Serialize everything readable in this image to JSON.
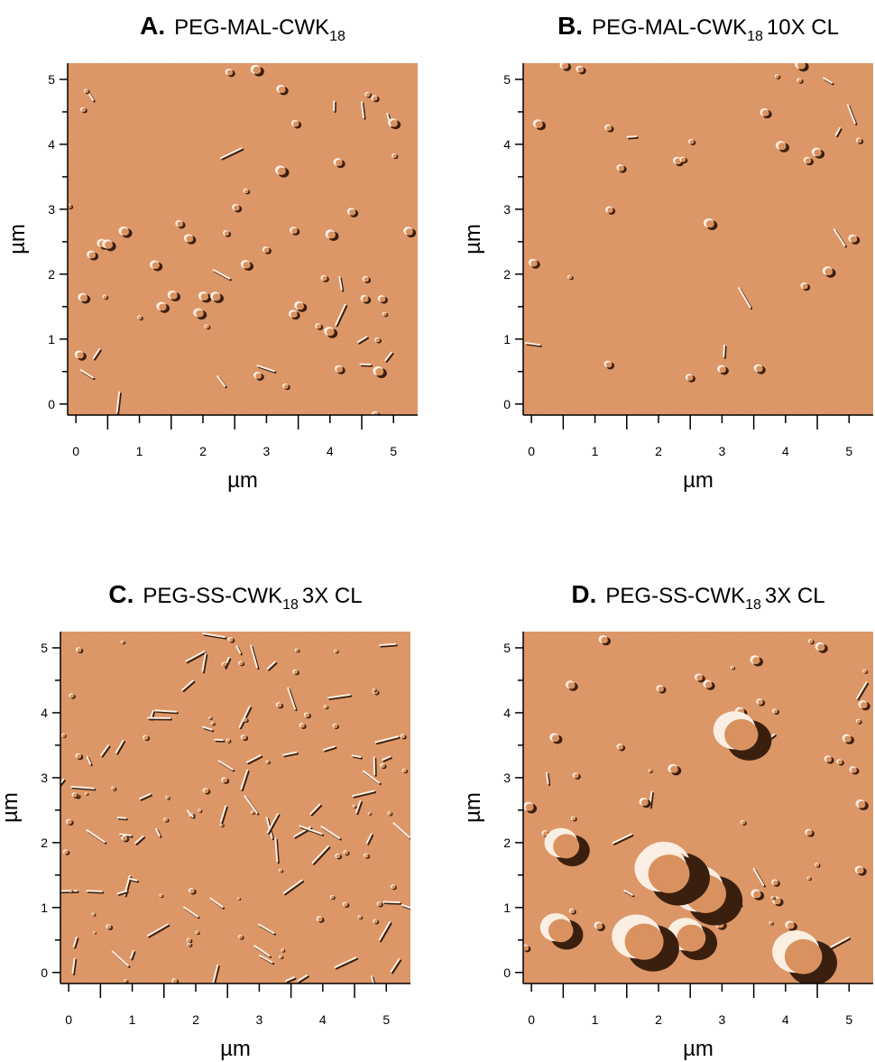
{
  "axes": {
    "x_label": "µm",
    "y_label": "µm",
    "xlim": [
      -0.13,
      5.38
    ],
    "ylim": [
      -0.17,
      5.25
    ],
    "xticks": [
      0,
      1,
      2,
      3,
      4,
      5
    ],
    "yticks": [
      0,
      1,
      2,
      3,
      4,
      5
    ],
    "xminor": [
      0.5,
      1.5,
      2.5,
      3.5,
      4.5
    ],
    "yminor": [
      0.5,
      1.5,
      2.5,
      3.5,
      4.5
    ]
  },
  "panels": [
    {
      "letter": "A.",
      "title": "PEG-MAL-CWK",
      "subscript": "18"
    },
    {
      "letter": "B.",
      "title": "PEG-MAL-CWK",
      "subscript": "18",
      "suffix": "10X CL"
    },
    {
      "letter": "C.",
      "title": "PEG-SS-CWK",
      "subscript": "18",
      "suffix": "3X CL"
    },
    {
      "letter": "D.",
      "title": "PEG-SS-CWK",
      "subscript": "18",
      "suffix": "3X CL"
    }
  ]
}
